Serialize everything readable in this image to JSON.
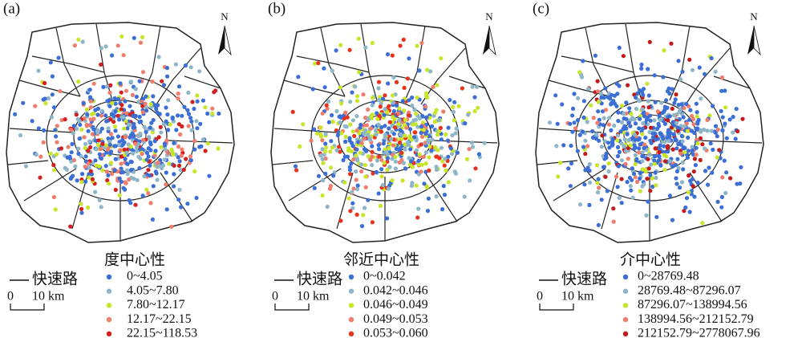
{
  "road_label": "快速路",
  "scale": {
    "start": "0",
    "end": "10 km"
  },
  "north": "N",
  "panels": [
    {
      "label": "(a)",
      "legend": {
        "title": "度中心性",
        "items": [
          {
            "label": "0~4.05",
            "color": "#3b6fd6"
          },
          {
            "label": "4.05~7.80",
            "color": "#8db6c8"
          },
          {
            "label": "7.80~12.17",
            "color": "#c9e52a"
          },
          {
            "label": "12.17~22.15",
            "color": "#f07c6c"
          },
          {
            "label": "22.15~118.53",
            "color": "#d41f1f"
          }
        ]
      }
    },
    {
      "label": "(b)",
      "legend": {
        "title": "邻近中心性",
        "items": [
          {
            "label": "0~0.042",
            "color": "#3b6fd6"
          },
          {
            "label": "0.042~0.046",
            "color": "#8db6c8"
          },
          {
            "label": "0.046~0.049",
            "color": "#c9e52a"
          },
          {
            "label": "0.049~0.053",
            "color": "#f07c6c"
          },
          {
            "label": "0.053~0.060",
            "color": "#e8321c"
          }
        ]
      }
    },
    {
      "label": "(c)",
      "legend": {
        "title": "介中心性",
        "items": [
          {
            "label": "0~28769.48",
            "color": "#3b6fd6"
          },
          {
            "label": "28769.48~87296.07",
            "color": "#8db6c8"
          },
          {
            "label": "87296.07~138994.56",
            "color": "#c9e52a"
          },
          {
            "label": "138994.56~212152.79",
            "color": "#f07c6c"
          },
          {
            "label": "212152.79~2778067.96",
            "color": "#c41a1a"
          }
        ]
      }
    }
  ]
}
